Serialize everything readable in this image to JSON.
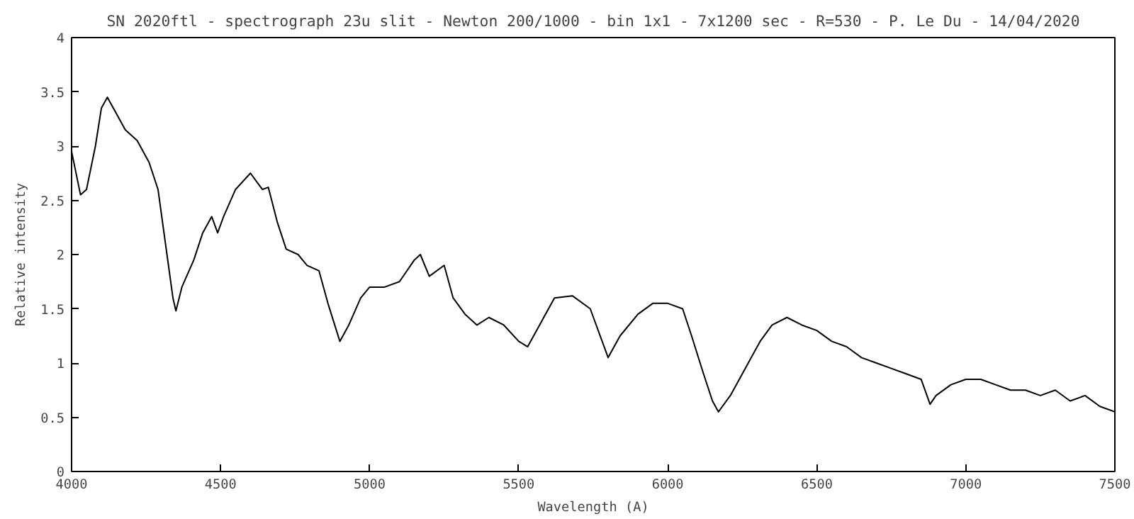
{
  "chart_data": {
    "type": "line",
    "title": "SN 2020ftl - spectrograph 23u slit - Newton 200/1000 - bin 1x1 - 7x1200 sec - R=530 - P. Le Du - 14/04/2020",
    "xlabel": "Wavelength (A)",
    "ylabel": "Relative intensity",
    "xlim": [
      4000,
      7500
    ],
    "ylim": [
      0,
      4
    ],
    "xticks": [
      4000,
      4500,
      5000,
      5500,
      6000,
      6500,
      7000,
      7500
    ],
    "yticks": [
      0,
      0.5,
      1,
      1.5,
      2,
      2.5,
      3,
      3.5,
      4
    ],
    "grid": false,
    "series": [
      {
        "color": "#000000",
        "x": [
          4000,
          4030,
          4050,
          4080,
          4100,
          4120,
          4150,
          4180,
          4220,
          4260,
          4290,
          4320,
          4340,
          4350,
          4370,
          4410,
          4440,
          4470,
          4490,
          4510,
          4550,
          4600,
          4640,
          4660,
          4690,
          4720,
          4760,
          4790,
          4830,
          4860,
          4900,
          4930,
          4970,
          5000,
          5050,
          5100,
          5150,
          5170,
          5200,
          5250,
          5280,
          5320,
          5360,
          5400,
          5450,
          5500,
          5530,
          5570,
          5620,
          5680,
          5740,
          5780,
          5800,
          5840,
          5900,
          5950,
          6000,
          6050,
          6080,
          6120,
          6150,
          6170,
          6210,
          6260,
          6310,
          6350,
          6400,
          6450,
          6500,
          6550,
          6600,
          6650,
          6700,
          6750,
          6800,
          6850,
          6880,
          6900,
          6950,
          7000,
          7050,
          7100,
          7150,
          7200,
          7250,
          7300,
          7350,
          7400,
          7450,
          7500
        ],
        "values": [
          2.95,
          2.55,
          2.6,
          3.0,
          3.35,
          3.45,
          3.3,
          3.15,
          3.05,
          2.85,
          2.6,
          2.0,
          1.6,
          1.48,
          1.7,
          1.95,
          2.2,
          2.35,
          2.2,
          2.35,
          2.6,
          2.75,
          2.6,
          2.62,
          2.3,
          2.05,
          2.0,
          1.9,
          1.85,
          1.55,
          1.2,
          1.35,
          1.6,
          1.7,
          1.7,
          1.75,
          1.95,
          2.0,
          1.8,
          1.9,
          1.6,
          1.45,
          1.35,
          1.42,
          1.35,
          1.2,
          1.15,
          1.35,
          1.6,
          1.62,
          1.5,
          1.2,
          1.05,
          1.25,
          1.45,
          1.55,
          1.55,
          1.5,
          1.25,
          0.9,
          0.65,
          0.55,
          0.7,
          0.95,
          1.2,
          1.35,
          1.42,
          1.35,
          1.3,
          1.2,
          1.15,
          1.05,
          1.0,
          0.95,
          0.9,
          0.85,
          0.62,
          0.7,
          0.8,
          0.85,
          0.85,
          0.8,
          0.75,
          0.75,
          0.7,
          0.75,
          0.65,
          0.7,
          0.6,
          0.55
        ]
      }
    ]
  }
}
